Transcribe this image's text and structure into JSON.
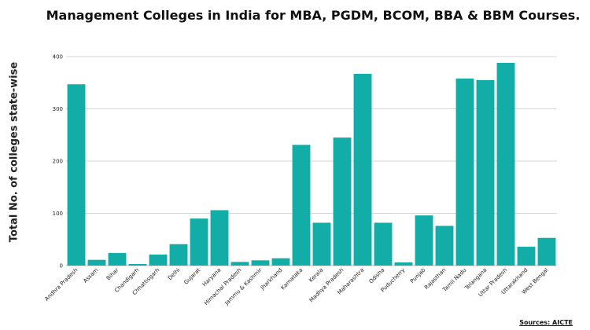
{
  "chart_data": {
    "type": "bar",
    "title": "Management Colleges in India for MBA, PGDM, BCOM, BBA & BBM Courses.",
    "xlabel": "",
    "ylabel": "Total No. of colleges state-wise",
    "ylim": [
      0,
      400
    ],
    "yticks": [
      0,
      100,
      200,
      300,
      400
    ],
    "grid": true,
    "bar_color": "#12ada7",
    "categories": [
      "Andhra Pradesh",
      "Assam",
      "Bihar",
      "Chandigarh",
      "Chhattisgarh",
      "Delhi",
      "Gujarat",
      "Haryana",
      "Himachal Pradesh",
      "Jammu & Kashmir",
      "Jharkhand",
      "Karnataka",
      "Kerala",
      "Madhya Pradesh",
      "Maharashtra",
      "Odisha",
      "Puducherry",
      "Punjab",
      "Rajasthan",
      "Tamil Nadu",
      "Telangana",
      "Uttar Pradesh",
      "Uttarakhand",
      "West Bengal"
    ],
    "values": [
      347,
      11,
      24,
      3,
      21,
      41,
      90,
      106,
      7,
      10,
      14,
      231,
      82,
      245,
      367,
      82,
      6,
      96,
      76,
      358,
      355,
      388,
      36,
      53
    ],
    "source": "Sources: AICTE"
  }
}
